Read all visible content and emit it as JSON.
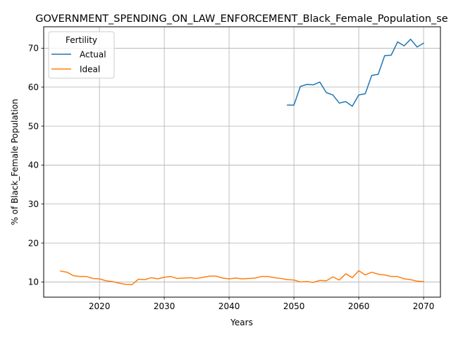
{
  "chart_data": {
    "type": "line",
    "title": "GOVERNMENT_SPENDING_ON_LAW_ENFORCEMENT_Black_Female_Population_se",
    "xlabel": "Years",
    "ylabel": "% of Black_Female Population",
    "xlim": [
      2011.4,
      2072.6
    ],
    "ylim": [
      6.1,
      75.5
    ],
    "xticks": [
      2020,
      2030,
      2040,
      2050,
      2060,
      2070
    ],
    "yticks": [
      10,
      20,
      30,
      40,
      50,
      60,
      70
    ],
    "grid": true,
    "legend": {
      "title": "Fertility",
      "placement": "top-left"
    },
    "series": [
      {
        "name": "Actual",
        "color": "#1f77b4",
        "x": [
          2049,
          2050,
          2051,
          2052,
          2053,
          2054,
          2055,
          2056,
          2057,
          2058,
          2059,
          2060,
          2061,
          2062,
          2063,
          2064,
          2065,
          2066,
          2067,
          2068,
          2069,
          2070
        ],
        "values": [
          55.4,
          55.4,
          60.2,
          60.7,
          60.6,
          61.3,
          58.6,
          58.0,
          55.9,
          56.3,
          55.1,
          58.0,
          58.3,
          63.0,
          63.3,
          68.1,
          68.2,
          71.6,
          70.6,
          72.3,
          70.3,
          71.3
        ]
      },
      {
        "name": "Ideal",
        "color": "#ff7f0e",
        "x": [
          2014,
          2015,
          2016,
          2017,
          2018,
          2019,
          2020,
          2021,
          2022,
          2023,
          2024,
          2025,
          2026,
          2027,
          2028,
          2029,
          2030,
          2031,
          2032,
          2033,
          2034,
          2035,
          2036,
          2037,
          2038,
          2039,
          2040,
          2041,
          2042,
          2043,
          2044,
          2045,
          2046,
          2047,
          2048,
          2049,
          2050,
          2051,
          2052,
          2053,
          2054,
          2055,
          2056,
          2057,
          2058,
          2059,
          2060,
          2061,
          2062,
          2063,
          2064,
          2065,
          2066,
          2067,
          2068,
          2069,
          2070
        ],
        "values": [
          12.8,
          12.5,
          11.6,
          11.4,
          11.4,
          10.9,
          10.8,
          10.3,
          10.1,
          9.7,
          9.4,
          9.3,
          10.7,
          10.6,
          11.1,
          10.8,
          11.2,
          11.4,
          10.9,
          11.0,
          11.1,
          10.9,
          11.2,
          11.5,
          11.5,
          11.0,
          10.8,
          11.0,
          10.8,
          10.9,
          11.0,
          11.4,
          11.4,
          11.1,
          10.9,
          10.6,
          10.5,
          10.0,
          10.1,
          9.9,
          10.4,
          10.3,
          11.3,
          10.5,
          12.1,
          11.1,
          12.9,
          11.8,
          12.5,
          12.0,
          11.8,
          11.4,
          11.4,
          10.8,
          10.6,
          10.2,
          10.1
        ]
      }
    ]
  }
}
